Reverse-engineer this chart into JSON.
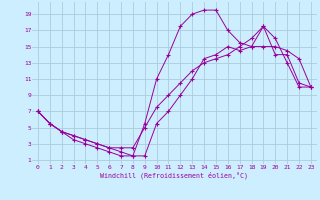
{
  "xlabel": "Windchill (Refroidissement éolien,°C)",
  "bg_color": "#cceeff",
  "grid_color": "#aaccdd",
  "line_color": "#990099",
  "xlim": [
    -0.5,
    23.5
  ],
  "ylim": [
    0.5,
    20.5
  ],
  "xticks": [
    0,
    1,
    2,
    3,
    4,
    5,
    6,
    7,
    8,
    9,
    10,
    11,
    12,
    13,
    14,
    15,
    16,
    17,
    18,
    19,
    20,
    21,
    22,
    23
  ],
  "yticks": [
    1,
    3,
    5,
    7,
    9,
    11,
    13,
    15,
    17,
    19
  ],
  "line1_x": [
    0,
    1,
    2,
    3,
    4,
    5,
    6,
    7,
    8,
    9,
    10,
    11,
    12,
    13,
    14,
    15,
    16,
    17,
    18,
    19,
    20,
    21,
    22,
    23
  ],
  "line1_y": [
    7,
    5.5,
    4.5,
    4.0,
    3.5,
    3.0,
    2.5,
    2.0,
    1.5,
    5.5,
    11.0,
    14.0,
    17.5,
    19.0,
    19.5,
    19.5,
    17.0,
    15.5,
    15.0,
    17.5,
    14.0,
    14.0,
    10.5,
    10.0
  ],
  "line2_x": [
    0,
    1,
    2,
    3,
    4,
    5,
    6,
    7,
    8,
    9,
    10,
    11,
    12,
    13,
    14,
    15,
    16,
    17,
    18,
    19,
    20,
    21,
    22,
    23
  ],
  "line2_y": [
    7,
    5.5,
    4.5,
    3.5,
    3.0,
    2.5,
    2.0,
    1.5,
    1.5,
    1.5,
    5.5,
    7.0,
    9.0,
    11.0,
    13.5,
    14.0,
    15.0,
    14.5,
    15.0,
    15.0,
    15.0,
    14.5,
    13.5,
    10.0
  ],
  "line3_x": [
    0,
    1,
    2,
    3,
    4,
    5,
    6,
    7,
    8,
    9,
    10,
    11,
    12,
    13,
    14,
    15,
    16,
    17,
    18,
    19,
    20,
    21,
    22,
    23
  ],
  "line3_y": [
    7,
    5.5,
    4.5,
    4.0,
    3.5,
    3.0,
    2.5,
    2.5,
    2.5,
    5.0,
    7.5,
    9.0,
    10.5,
    12.0,
    13.0,
    13.5,
    14.0,
    15.0,
    16.0,
    17.5,
    16.0,
    13.0,
    10.0,
    10.0
  ]
}
